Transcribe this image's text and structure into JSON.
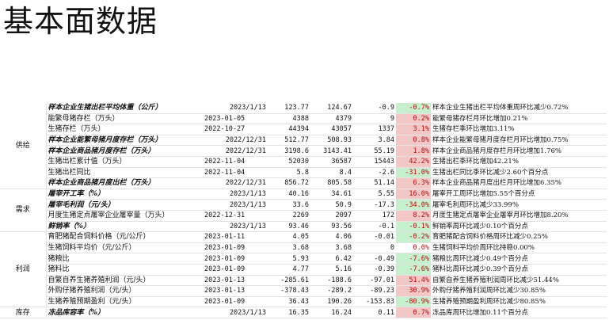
{
  "title": "基本面数据",
  "sections": [
    {
      "label": "供给",
      "rows": [
        {
          "name": "样本企业生猪出栏平均体重（公斤）",
          "bold": true,
          "date": "2023/1/13",
          "date_align": "right",
          "current": "123.77",
          "previous": "124.67",
          "change": "-0.9",
          "pct": "-0.7%",
          "trend": "down",
          "note": "样本企业生猪出栏平均体重周环比减少0.72%"
        },
        {
          "name": "能繁母猪存栏（万头）",
          "bold": false,
          "date": "2023-01-05",
          "date_align": "left",
          "current": "4388",
          "previous": "4379",
          "change": "9",
          "pct": "0.2%",
          "trend": "up",
          "note": "能繁母猪存栏月环比增加0.21%"
        },
        {
          "name": "生猪存栏（万头）",
          "bold": false,
          "date": "2022-10-27",
          "date_align": "left",
          "current": "44394",
          "previous": "43057",
          "change": "1337",
          "pct": "3.1%",
          "trend": "up",
          "note": "生猪存栏季环比增加3.11%"
        },
        {
          "name": "样本企业能繁母猪月度存栏（万头）",
          "bold": true,
          "date": "2022/12/31",
          "date_align": "right",
          "current": "512.77",
          "previous": "508.93",
          "change": "3.84",
          "pct": "0.8%",
          "trend": "up",
          "note": "样本企业能繁母猪月度存栏月环比增加0.75%"
        },
        {
          "name": "样本企业商品猪月度存栏（万头）",
          "bold": true,
          "date": "2022/12/31",
          "date_align": "right",
          "current": "3198.6",
          "previous": "3143.41",
          "change": "55.19",
          "pct": "1.8%",
          "trend": "up",
          "note": "样本企业商品猪月度存栏月环比增加1.76%"
        },
        {
          "name": "生猪出栏累计值（万头）",
          "bold": false,
          "date": "2022-11-04",
          "date_align": "left",
          "current": "52030",
          "previous": "36587",
          "change": "15443",
          "pct": "42.2%",
          "trend": "up",
          "note": "生猪出栏季环比增加42.21%"
        },
        {
          "name": "生猪出栏同比",
          "bold": false,
          "date": "2022-11-04",
          "date_align": "left",
          "current": "5.8",
          "previous": "8.4",
          "change": "-2.6",
          "pct": "-31.0%",
          "trend": "down",
          "note": "生猪出栏同比季环比减少2.60个百分点"
        },
        {
          "name": "样本企业商品猪月度出栏（万头）",
          "bold": true,
          "date": "2022/12/31",
          "date_align": "right",
          "current": "856.72",
          "previous": "805.58",
          "change": "51.14",
          "pct": "6.3%",
          "trend": "up",
          "note": "样本企业商品猪月度出栏月环比增加6.35%"
        }
      ]
    },
    {
      "label": "需求",
      "rows": [
        {
          "name": "屠宰开工率（%）",
          "bold": true,
          "date": "2023/1/13",
          "date_align": "right",
          "current": "40.16",
          "previous": "34.61",
          "change": "5.55",
          "pct": "16.0%",
          "trend": "up",
          "note": "屠宰开工周环比增加5.55个百分点"
        },
        {
          "name": "屠宰毛利润（元/头）",
          "bold": true,
          "date": "2023/1/13",
          "date_align": "right",
          "current": "33.6",
          "previous": "50.9",
          "change": "-17.3",
          "pct": "-34.0%",
          "trend": "down",
          "note": "屠宰毛利周环比减少33.99%"
        },
        {
          "name": "月度生猪定点屠宰企业屠宰量（万头）",
          "bold": false,
          "date": "2022-12-31",
          "date_align": "left",
          "current": "2269",
          "previous": "2097",
          "change": "172",
          "pct": "8.2%",
          "trend": "up",
          "note": "月度生猪定点屠宰企业屠宰月环比增加8.20%"
        },
        {
          "name": "鲜销率（%）",
          "bold": true,
          "date": "2023/1/13",
          "date_align": "right",
          "current": "93.46",
          "previous": "93.56",
          "change": "-0.1",
          "pct": "-0.1%",
          "trend": "down",
          "note": "鲜销率周环比减少0.10个百分点"
        }
      ]
    },
    {
      "label": "利润",
      "rows": [
        {
          "name": "育肥猪配合饲料价格（元/公斤）",
          "bold": false,
          "date": "2023-01-11",
          "date_align": "left",
          "current": "4.05",
          "previous": "4.06",
          "change": "-0.01",
          "pct": "-0.2%",
          "trend": "down",
          "note": "育肥猪配合饲料价格周环比减少0.25%"
        },
        {
          "name": "生猪饲料平均价（元/公斤）",
          "bold": false,
          "date": "2023-01-09",
          "date_align": "left",
          "current": "3.68",
          "previous": "3.68",
          "change": "0",
          "pct": "0.0%",
          "trend": "none",
          "note": "生猪饲料平均价周环比持稳0.00%"
        },
        {
          "name": "猪粮比",
          "bold": false,
          "date": "2023-01-09",
          "date_align": "left",
          "current": "5.93",
          "previous": "6.42",
          "change": "-0.49",
          "pct": "-7.6%",
          "trend": "down",
          "note": "猪粮比周环比减少0.49个百分点"
        },
        {
          "name": "猪料比",
          "bold": false,
          "date": "2023-01-09",
          "date_align": "left",
          "current": "4.77",
          "previous": "5.16",
          "change": "-0.39",
          "pct": "-7.6%",
          "trend": "down",
          "note": "猪料比周环比减少0.39个百分点"
        },
        {
          "name": "自繁自养生猪养殖利润（元/头）",
          "bold": false,
          "date": "2023-01-13",
          "date_align": "left",
          "current": "-285.61",
          "previous": "-188.6",
          "change": "-97.01",
          "pct": "51.4%",
          "trend": "up",
          "note": "自繁自养生猪养殖利润周环比减少51.44%"
        },
        {
          "name": "外购仔猪养殖利润（元/头）",
          "bold": false,
          "date": "2023-01-13",
          "date_align": "left",
          "current": "-378.43",
          "previous": "-289.2",
          "change": "-89.23",
          "pct": "30.9%",
          "trend": "up",
          "note": "外购仔猪养殖利润周环比减少30.85%"
        },
        {
          "name": "生猪养殖预期盈利（元/头）",
          "bold": false,
          "date": "2023-01-09",
          "date_align": "left",
          "current": "36.43",
          "previous": "190.26",
          "change": "-153.83",
          "pct": "-80.9%",
          "trend": "down",
          "note": "生猪养殖预期盈利周环比减少80.85%"
        }
      ]
    },
    {
      "label": "库存",
      "rows": [
        {
          "name": "冻品库容率（%）",
          "bold": true,
          "date": "2023/1/13",
          "date_align": "right",
          "current": "16.35",
          "previous": "16.24",
          "change": "0.11",
          "pct": "0.7%",
          "trend": "up",
          "note": "冻品库周环比增加0.11个百分点"
        }
      ]
    }
  ]
}
